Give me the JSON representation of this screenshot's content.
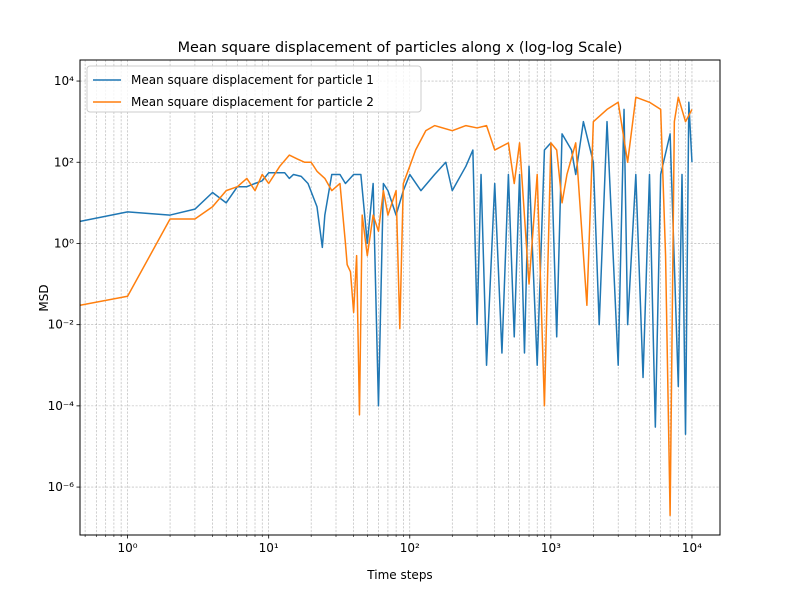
{
  "chart_data": {
    "type": "line",
    "title": "Mean square displacement of particles along x (log-log Scale)",
    "xlabel": "Time steps",
    "ylabel": "MSD",
    "xscale": "log",
    "yscale": "log",
    "xlim": [
      0.46,
      15800
    ],
    "ylim": [
      6.6e-08,
      33000
    ],
    "xticks": [
      {
        "value": 1,
        "label": "10⁰"
      },
      {
        "value": 10,
        "label": "10¹"
      },
      {
        "value": 100,
        "label": "10²"
      },
      {
        "value": 1000,
        "label": "10³"
      },
      {
        "value": 10000,
        "label": "10⁴"
      }
    ],
    "yticks": [
      {
        "value": 1e-06,
        "label": "10⁻⁶"
      },
      {
        "value": 0.0001,
        "label": "10⁻⁴"
      },
      {
        "value": 0.01,
        "label": "10⁻²"
      },
      {
        "value": 1,
        "label": "10⁰"
      },
      {
        "value": 100,
        "label": "10²"
      },
      {
        "value": 10000,
        "label": "10⁴"
      }
    ],
    "grid": true,
    "minor_grid_x": true,
    "legend": "upper left",
    "series": [
      {
        "name": "Mean square displacement for particle 1",
        "color": "#1f77b4",
        "x": [
          0.46,
          1,
          2,
          3,
          4,
          5,
          6,
          7,
          8,
          9,
          10,
          13,
          14,
          15,
          17,
          19,
          22,
          24,
          25,
          28,
          32,
          35,
          40,
          45,
          50,
          55,
          60,
          65,
          70,
          80,
          90,
          100,
          120,
          150,
          180,
          200,
          250,
          280,
          300,
          320,
          350,
          400,
          450,
          500,
          550,
          600,
          650,
          700,
          800,
          900,
          1000,
          1100,
          1200,
          1400,
          1500,
          1700,
          2000,
          2200,
          2500,
          3000,
          3300,
          3500,
          4000,
          4500,
          5000,
          5500,
          6000,
          7000,
          8000,
          8500,
          9000,
          9500,
          10000
        ],
        "values": [
          3.5,
          6,
          5,
          7,
          18,
          10,
          25,
          25,
          30,
          35,
          55,
          55,
          40,
          50,
          45,
          30,
          8,
          0.8,
          5,
          50,
          50,
          30,
          50,
          50,
          1,
          30,
          0.0001,
          30,
          20,
          5,
          20,
          50,
          20,
          50,
          100,
          20,
          80,
          200,
          0.01,
          50,
          0.001,
          30,
          0.002,
          50,
          0.005,
          50,
          0.002,
          80,
          0.001,
          200,
          300,
          0.005,
          500,
          200,
          50,
          1000,
          100,
          0.01,
          1000,
          0.001,
          2000,
          0.01,
          50,
          0.0005,
          50,
          3e-05,
          50,
          500,
          0.0003,
          50,
          2e-05,
          3000,
          100
        ]
      },
      {
        "name": "Mean square displacement for particle 2",
        "color": "#ff7f0e",
        "x": [
          0.46,
          1,
          2,
          3,
          4,
          5,
          6,
          7,
          8,
          9,
          10,
          12,
          14,
          16,
          18,
          20,
          22,
          25,
          28,
          32,
          35,
          36,
          38,
          40,
          42,
          44,
          46,
          50,
          55,
          60,
          65,
          70,
          80,
          85,
          90,
          100,
          110,
          130,
          150,
          200,
          250,
          300,
          350,
          400,
          500,
          550,
          600,
          700,
          800,
          900,
          1000,
          1100,
          1200,
          1300,
          1500,
          1800,
          2000,
          2500,
          3000,
          3500,
          4000,
          5000,
          6000,
          6500,
          7000,
          7500,
          8000,
          9000,
          10000
        ],
        "values": [
          0.03,
          0.05,
          4,
          4,
          8,
          20,
          25,
          40,
          20,
          50,
          30,
          80,
          150,
          120,
          100,
          100,
          60,
          40,
          20,
          30,
          1,
          0.3,
          0.2,
          0.02,
          0.5,
          6e-05,
          5,
          0.5,
          5,
          2,
          20,
          5,
          20,
          0.008,
          30,
          80,
          200,
          600,
          800,
          600,
          800,
          700,
          800,
          200,
          300,
          30,
          300,
          0.1,
          50,
          0.0001,
          300,
          200,
          10,
          50,
          300,
          0.03,
          1000,
          2000,
          3000,
          100,
          4000,
          3000,
          2000,
          0.5,
          2e-07,
          1000,
          4000,
          1000,
          2000
        ]
      }
    ]
  }
}
